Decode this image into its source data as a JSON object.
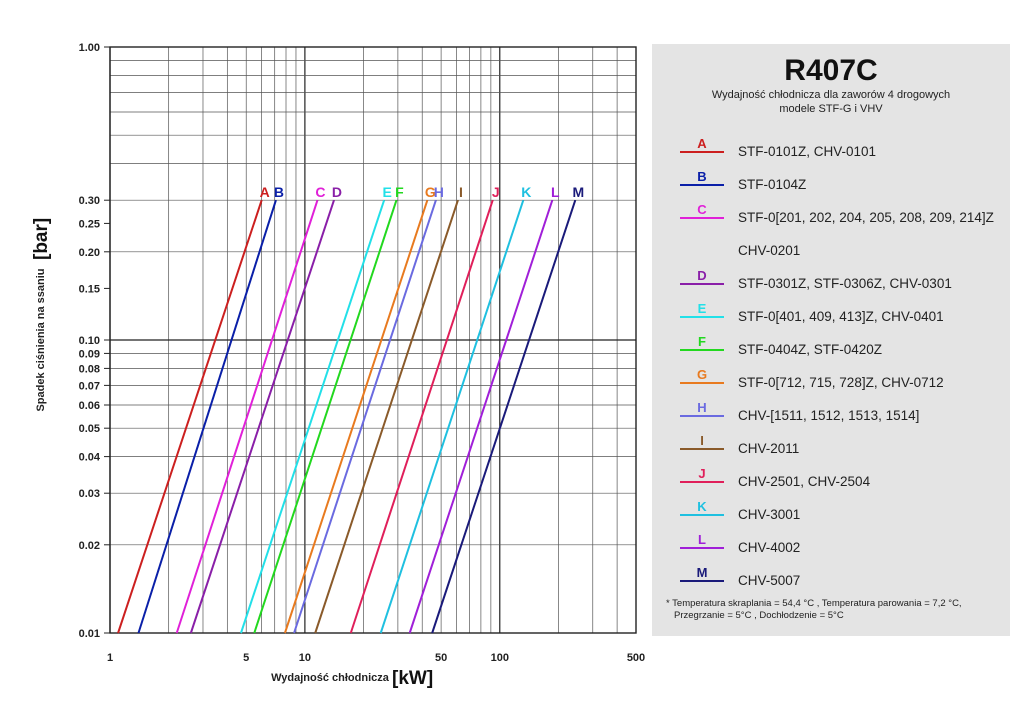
{
  "chart_data": {
    "type": "line",
    "xscale": "log",
    "yscale": "log",
    "xlim": [
      1,
      500
    ],
    "ylim": [
      0.01,
      1.0
    ],
    "xlabel": "Wydajność chłodnicza",
    "xunit": "[kW]",
    "ylabel": "Spadek ciśnienia na ssaniu",
    "yunit": "[bar]",
    "grid": true,
    "x_tick_labels": [
      {
        "value": 1,
        "label": "1"
      },
      {
        "value": 5,
        "label": "5"
      },
      {
        "value": 10,
        "label": "10"
      },
      {
        "value": 50,
        "label": "50"
      },
      {
        "value": 100,
        "label": "100"
      },
      {
        "value": 500,
        "label": "500"
      }
    ],
    "y_tick_labels": [
      {
        "value": 1.0,
        "label": "1.00"
      },
      {
        "value": 0.3,
        "label": "0.30"
      },
      {
        "value": 0.25,
        "label": "0.25"
      },
      {
        "value": 0.2,
        "label": "0.20"
      },
      {
        "value": 0.15,
        "label": "0.15"
      },
      {
        "value": 0.1,
        "label": "0.10"
      },
      {
        "value": 0.09,
        "label": "0.09"
      },
      {
        "value": 0.08,
        "label": "0.08"
      },
      {
        "value": 0.07,
        "label": "0.07"
      },
      {
        "value": 0.06,
        "label": "0.06"
      },
      {
        "value": 0.05,
        "label": "0.05"
      },
      {
        "value": 0.04,
        "label": "0.04"
      },
      {
        "value": 0.03,
        "label": "0.03"
      },
      {
        "value": 0.02,
        "label": "0.02"
      },
      {
        "value": 0.01,
        "label": "0.01"
      }
    ],
    "series": [
      {
        "name": "A",
        "color": "#cc1f1f",
        "x": [
          1.1,
          6.0
        ],
        "y": [
          0.01,
          0.3
        ]
      },
      {
        "name": "B",
        "color": "#0a1fa8",
        "x": [
          1.4,
          7.1
        ],
        "y": [
          0.01,
          0.3
        ]
      },
      {
        "name": "C",
        "color": "#e020d8",
        "x": [
          2.2,
          11.6
        ],
        "y": [
          0.01,
          0.3
        ]
      },
      {
        "name": "D",
        "color": "#8a1fa8",
        "x": [
          2.6,
          14.1
        ],
        "y": [
          0.01,
          0.3
        ]
      },
      {
        "name": "E",
        "color": "#22e0e8",
        "x": [
          4.7,
          25.5
        ],
        "y": [
          0.01,
          0.3
        ]
      },
      {
        "name": "F",
        "color": "#22d81f",
        "x": [
          5.5,
          29.5
        ],
        "y": [
          0.01,
          0.3
        ]
      },
      {
        "name": "G",
        "color": "#e87a1f",
        "x": [
          7.9,
          42.5
        ],
        "y": [
          0.01,
          0.3
        ]
      },
      {
        "name": "H",
        "color": "#6a6ae0",
        "x": [
          8.8,
          47.0
        ],
        "y": [
          0.01,
          0.3
        ]
      },
      {
        "name": "I",
        "color": "#8a5a2a",
        "x": [
          11.3,
          61.0
        ],
        "y": [
          0.01,
          0.3
        ]
      },
      {
        "name": "J",
        "color": "#e01f5a",
        "x": [
          17.2,
          92.0
        ],
        "y": [
          0.01,
          0.3
        ]
      },
      {
        "name": "K",
        "color": "#1fc0e0",
        "x": [
          24.5,
          132.0
        ],
        "y": [
          0.01,
          0.3
        ]
      },
      {
        "name": "L",
        "color": "#a01fd8",
        "x": [
          34.5,
          186.0
        ],
        "y": [
          0.01,
          0.3
        ]
      },
      {
        "name": "M",
        "color": "#1a1a7a",
        "x": [
          45.0,
          244.0
        ],
        "y": [
          0.01,
          0.3
        ]
      }
    ]
  },
  "legend": {
    "title": "R407C",
    "subtitle_line1": "Wydajność chłodnicza dla zaworów 4 drogowych",
    "subtitle_line2": "modele STF-G i VHV",
    "items": [
      {
        "letter": "A",
        "color": "#cc1f1f",
        "text": "STF-0101Z, CHV-0101"
      },
      {
        "letter": "B",
        "color": "#0a1fa8",
        "text": "STF-0104Z"
      },
      {
        "letter": "C",
        "color": "#e020d8",
        "text": "STF-0[201, 202, 204, 205, 208, 209, 214]Z"
      },
      {
        "letter": "",
        "color": "",
        "text": "CHV-0201"
      },
      {
        "letter": "D",
        "color": "#8a1fa8",
        "text": "STF-0301Z, STF-0306Z, CHV-0301"
      },
      {
        "letter": "E",
        "color": "#22e0e8",
        "text": "STF-0[401, 409, 413]Z, CHV-0401"
      },
      {
        "letter": "F",
        "color": "#22d81f",
        "text": "STF-0404Z, STF-0420Z"
      },
      {
        "letter": "G",
        "color": "#e87a1f",
        "text": "STF-0[712, 715, 728]Z, CHV-0712"
      },
      {
        "letter": "H",
        "color": "#6a6ae0",
        "text": "CHV-[1511, 1512, 1513, 1514]"
      },
      {
        "letter": "I",
        "color": "#8a5a2a",
        "text": "CHV-2011"
      },
      {
        "letter": "J",
        "color": "#e01f5a",
        "text": "CHV-2501, CHV-2504"
      },
      {
        "letter": "K",
        "color": "#1fc0e0",
        "text": "CHV-3001"
      },
      {
        "letter": "L",
        "color": "#a01fd8",
        "text": "CHV-4002"
      },
      {
        "letter": "M",
        "color": "#1a1a7a",
        "text": "CHV-5007"
      }
    ],
    "footnote_line1": "* Temperatura skraplania = 54,4 °C , Temperatura parowania = 7,2 °C,",
    "footnote_line2": "Przegrzanie = 5°C , Dochłodzenie = 5°C"
  }
}
